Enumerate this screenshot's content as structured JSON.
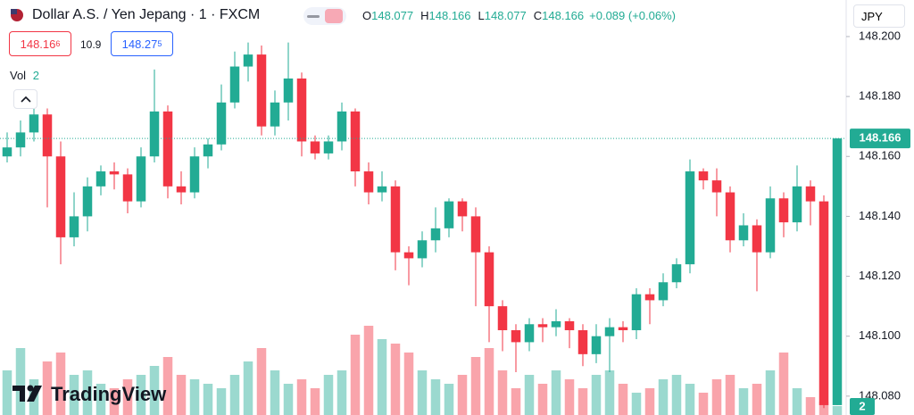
{
  "header": {
    "symbol": "Dollar A.S. / Yen Jepang · 1 · FXCM",
    "ohlc": [
      {
        "key": "O",
        "value": "148.077"
      },
      {
        "key": "H",
        "value": "148.166"
      },
      {
        "key": "L",
        "value": "148.077"
      },
      {
        "key": "C",
        "value": "148.166"
      }
    ],
    "change": "+0.089 (+0.06%)",
    "currency": "JPY",
    "sell": {
      "main": "148.16",
      "small": "6"
    },
    "spread": "10.9",
    "buy": {
      "main": "148.27",
      "small": "5"
    },
    "volume_label": "Vol",
    "volume_value": "2"
  },
  "logo": "TradingView",
  "chart_data": {
    "type": "candlestick",
    "up_color": "#22ab94",
    "down_color": "#f23645",
    "ylim": [
      148.0737,
      148.2122
    ],
    "yticks": [
      {
        "value": 148.2,
        "label": "148.200"
      },
      {
        "value": 148.18,
        "label": "148.180"
      },
      {
        "value": 148.16,
        "label": "148.160"
      },
      {
        "value": 148.14,
        "label": "148.140"
      },
      {
        "value": 148.12,
        "label": "148.120"
      },
      {
        "value": 148.1,
        "label": "148.100"
      },
      {
        "value": 148.08,
        "label": "148.080"
      }
    ],
    "last_price": {
      "value": 148.166,
      "label": "148.166"
    },
    "last_volume_label": "2",
    "volume_ylim": [
      0,
      93
    ],
    "open": [
      148.16,
      148.163,
      148.168,
      148.174,
      148.16,
      148.133,
      148.14,
      148.15,
      148.155,
      148.154,
      148.145,
      148.16,
      148.175,
      148.15,
      148.148,
      148.16,
      148.164,
      148.178,
      148.19,
      148.194,
      148.17,
      148.178,
      148.186,
      148.165,
      148.161,
      148.165,
      148.175,
      148.155,
      148.148,
      148.15,
      148.128,
      148.126,
      148.132,
      148.136,
      148.145,
      148.14,
      148.128,
      148.11,
      148.102,
      148.098,
      148.104,
      148.103,
      148.105,
      148.102,
      148.094,
      148.1,
      148.103,
      148.102,
      148.114,
      148.112,
      148.118,
      148.124,
      148.155,
      148.152,
      148.148,
      148.132,
      148.137,
      148.128,
      148.146,
      148.138,
      148.15,
      148.145,
      148.077
    ],
    "high": [
      148.168,
      148.172,
      148.18,
      148.176,
      148.165,
      148.148,
      148.153,
      148.157,
      148.158,
      148.156,
      148.163,
      148.189,
      148.177,
      148.155,
      148.163,
      148.166,
      148.184,
      148.195,
      148.198,
      148.197,
      148.182,
      148.198,
      148.188,
      148.167,
      148.167,
      148.178,
      148.176,
      148.158,
      148.155,
      148.152,
      148.13,
      148.135,
      148.143,
      148.146,
      148.146,
      148.143,
      148.13,
      148.112,
      148.104,
      148.106,
      148.106,
      148.109,
      148.106,
      148.104,
      148.104,
      148.106,
      148.105,
      148.116,
      148.116,
      148.121,
      148.126,
      148.159,
      148.156,
      148.156,
      148.15,
      148.141,
      148.139,
      148.15,
      148.148,
      148.157,
      148.152,
      148.147,
      148.166
    ],
    "low": [
      148.158,
      148.16,
      148.165,
      148.143,
      148.124,
      148.13,
      148.135,
      148.147,
      148.149,
      148.141,
      148.143,
      148.158,
      148.146,
      148.144,
      148.146,
      148.156,
      148.162,
      148.176,
      148.185,
      148.167,
      148.167,
      148.172,
      148.16,
      148.159,
      148.159,
      148.162,
      148.15,
      148.144,
      148.145,
      148.122,
      148.117,
      148.123,
      148.128,
      148.133,
      148.135,
      148.11,
      148.098,
      148.095,
      148.088,
      148.095,
      148.098,
      148.1,
      148.096,
      148.09,
      148.091,
      148.088,
      148.098,
      148.099,
      148.104,
      148.11,
      148.116,
      148.121,
      148.149,
      148.14,
      148.128,
      148.13,
      148.115,
      148.126,
      148.133,
      148.135,
      148.137,
      148.076,
      148.077
    ],
    "close": [
      148.163,
      148.168,
      148.174,
      148.16,
      148.133,
      148.14,
      148.15,
      148.155,
      148.154,
      148.145,
      148.16,
      148.175,
      148.15,
      148.148,
      148.16,
      148.164,
      148.178,
      148.19,
      148.194,
      148.17,
      148.178,
      148.186,
      148.165,
      148.161,
      148.165,
      148.175,
      148.155,
      148.148,
      148.15,
      148.128,
      148.126,
      148.132,
      148.136,
      148.145,
      148.14,
      148.128,
      148.11,
      148.102,
      148.098,
      148.104,
      148.103,
      148.105,
      148.102,
      148.094,
      148.1,
      148.103,
      148.102,
      148.114,
      148.112,
      148.118,
      148.124,
      148.155,
      148.152,
      148.148,
      148.132,
      148.137,
      148.128,
      148.146,
      148.138,
      148.15,
      148.145,
      148.077,
      148.166
    ],
    "volume": [
      10,
      15,
      8,
      12,
      14,
      9,
      10,
      7,
      6,
      8,
      9,
      11,
      13,
      9,
      8,
      7,
      6,
      9,
      12,
      15,
      10,
      7,
      8,
      6,
      9,
      10,
      18,
      20,
      17,
      16,
      14,
      10,
      8,
      7,
      9,
      13,
      15,
      10,
      6,
      9,
      7,
      10,
      8,
      6,
      9,
      10,
      7,
      5,
      6,
      8,
      9,
      7,
      5,
      8,
      9,
      6,
      7,
      10,
      14,
      6,
      4,
      3,
      2
    ]
  }
}
